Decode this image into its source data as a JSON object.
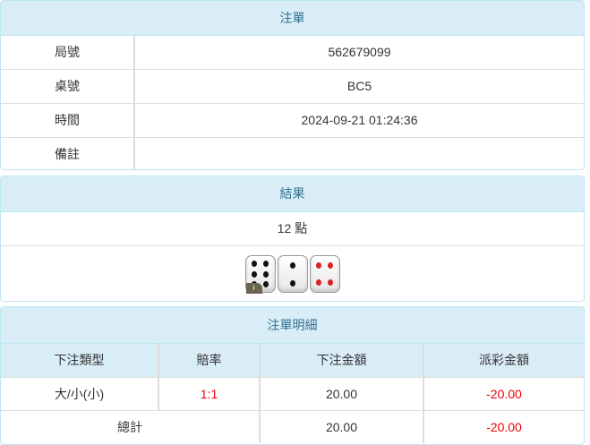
{
  "order": {
    "title": "注單",
    "rows": [
      {
        "label": "局號",
        "value": "562679099"
      },
      {
        "label": "桌號",
        "value": "BC5"
      },
      {
        "label": "時間",
        "value": "2024-09-21 01:24:36"
      },
      {
        "label": "備註",
        "value": ""
      }
    ]
  },
  "result": {
    "title": "結果",
    "points": "12 點",
    "dice": [
      6,
      2,
      4
    ],
    "badge": "i"
  },
  "details": {
    "title": "注單明細",
    "headers": [
      "下注類型",
      "賠率",
      "下注金額",
      "派彩金額"
    ],
    "rows": [
      {
        "type": "大/小(小)",
        "odds": "1:1",
        "bet": "20.00",
        "payout": "-20.00"
      }
    ],
    "total": {
      "label": "總計",
      "bet": "20.00",
      "payout": "-20.00"
    }
  },
  "colors": {
    "header_bg": "#d9edf7",
    "header_text": "#31708f",
    "negative": "#ee0000"
  }
}
